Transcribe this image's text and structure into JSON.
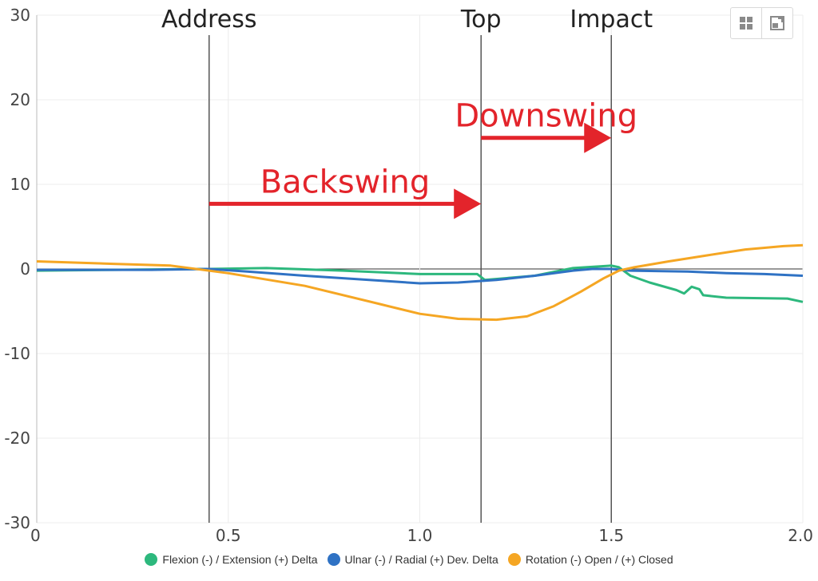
{
  "chart_data": {
    "type": "line",
    "xlim": [
      0,
      2.0
    ],
    "ylim": [
      -30,
      30
    ],
    "x_ticks": [
      {
        "value": 0,
        "label": "0"
      },
      {
        "value": 0.5,
        "label": "0.5"
      },
      {
        "value": 1.0,
        "label": "1.0"
      },
      {
        "value": 1.5,
        "label": "1.5"
      },
      {
        "value": 2.0,
        "label": "2.0"
      }
    ],
    "y_ticks": [
      {
        "value": 30,
        "label": "30"
      },
      {
        "value": 20,
        "label": "20"
      },
      {
        "value": 10,
        "label": "10"
      },
      {
        "value": 0,
        "label": "0"
      },
      {
        "value": -10,
        "label": "-10"
      },
      {
        "value": -20,
        "label": "-20"
      },
      {
        "value": -30,
        "label": "-30"
      }
    ],
    "grid": true,
    "legend_position": "bottom",
    "phases": [
      {
        "label": "Address",
        "x": 0.45
      },
      {
        "label": "Top",
        "x": 1.16
      },
      {
        "label": "Impact",
        "x": 1.5
      }
    ],
    "annotations": [
      {
        "label": "Backswing",
        "from": 0.45,
        "to": 1.16,
        "y": 7.7
      },
      {
        "label": "Downswing",
        "from": 1.16,
        "to": 1.5,
        "y": 15.5
      }
    ],
    "series": [
      {
        "name": "Flexion (-) / Extension (+) Delta",
        "color": "#2db87d",
        "points": [
          [
            0,
            -0.2
          ],
          [
            0.2,
            -0.1
          ],
          [
            0.45,
            0
          ],
          [
            0.6,
            0.1
          ],
          [
            0.8,
            -0.2
          ],
          [
            1.0,
            -0.6
          ],
          [
            1.1,
            -0.6
          ],
          [
            1.15,
            -0.6
          ],
          [
            1.17,
            -1.3
          ],
          [
            1.3,
            -0.8
          ],
          [
            1.4,
            0.1
          ],
          [
            1.5,
            0.4
          ],
          [
            1.52,
            0.2
          ],
          [
            1.55,
            -0.8
          ],
          [
            1.6,
            -1.6
          ],
          [
            1.67,
            -2.5
          ],
          [
            1.69,
            -2.9
          ],
          [
            1.71,
            -2.1
          ],
          [
            1.73,
            -2.4
          ],
          [
            1.74,
            -3.1
          ],
          [
            1.8,
            -3.4
          ],
          [
            1.96,
            -3.5
          ],
          [
            2.0,
            -3.9
          ]
        ]
      },
      {
        "name": "Ulnar (-) / Radial (+) Dev. Delta",
        "color": "#2f72c4",
        "points": [
          [
            0,
            -0.1
          ],
          [
            0.3,
            -0.1
          ],
          [
            0.45,
            0
          ],
          [
            0.55,
            -0.3
          ],
          [
            0.7,
            -0.8
          ],
          [
            0.9,
            -1.4
          ],
          [
            1.0,
            -1.7
          ],
          [
            1.1,
            -1.6
          ],
          [
            1.2,
            -1.3
          ],
          [
            1.3,
            -0.8
          ],
          [
            1.4,
            -0.2
          ],
          [
            1.45,
            0
          ],
          [
            1.5,
            0
          ],
          [
            1.55,
            -0.2
          ],
          [
            1.7,
            -0.3
          ],
          [
            1.8,
            -0.5
          ],
          [
            1.9,
            -0.6
          ],
          [
            2.0,
            -0.8
          ]
        ]
      },
      {
        "name": "Rotation (-) Open / (+) Closed",
        "color": "#f5a623",
        "points": [
          [
            0,
            0.9
          ],
          [
            0.2,
            0.6
          ],
          [
            0.35,
            0.4
          ],
          [
            0.5,
            -0.5
          ],
          [
            0.7,
            -2.0
          ],
          [
            0.9,
            -4.2
          ],
          [
            1.0,
            -5.3
          ],
          [
            1.1,
            -5.9
          ],
          [
            1.2,
            -6.0
          ],
          [
            1.28,
            -5.6
          ],
          [
            1.35,
            -4.4
          ],
          [
            1.42,
            -2.7
          ],
          [
            1.48,
            -1.1
          ],
          [
            1.52,
            -0.2
          ],
          [
            1.56,
            0.2
          ],
          [
            1.65,
            0.9
          ],
          [
            1.75,
            1.6
          ],
          [
            1.85,
            2.3
          ],
          [
            1.95,
            2.7
          ],
          [
            2.0,
            2.8
          ]
        ]
      }
    ]
  },
  "toolbar": {
    "grid_icon": "grid-view-icon",
    "expand_icon": "expand-icon"
  }
}
